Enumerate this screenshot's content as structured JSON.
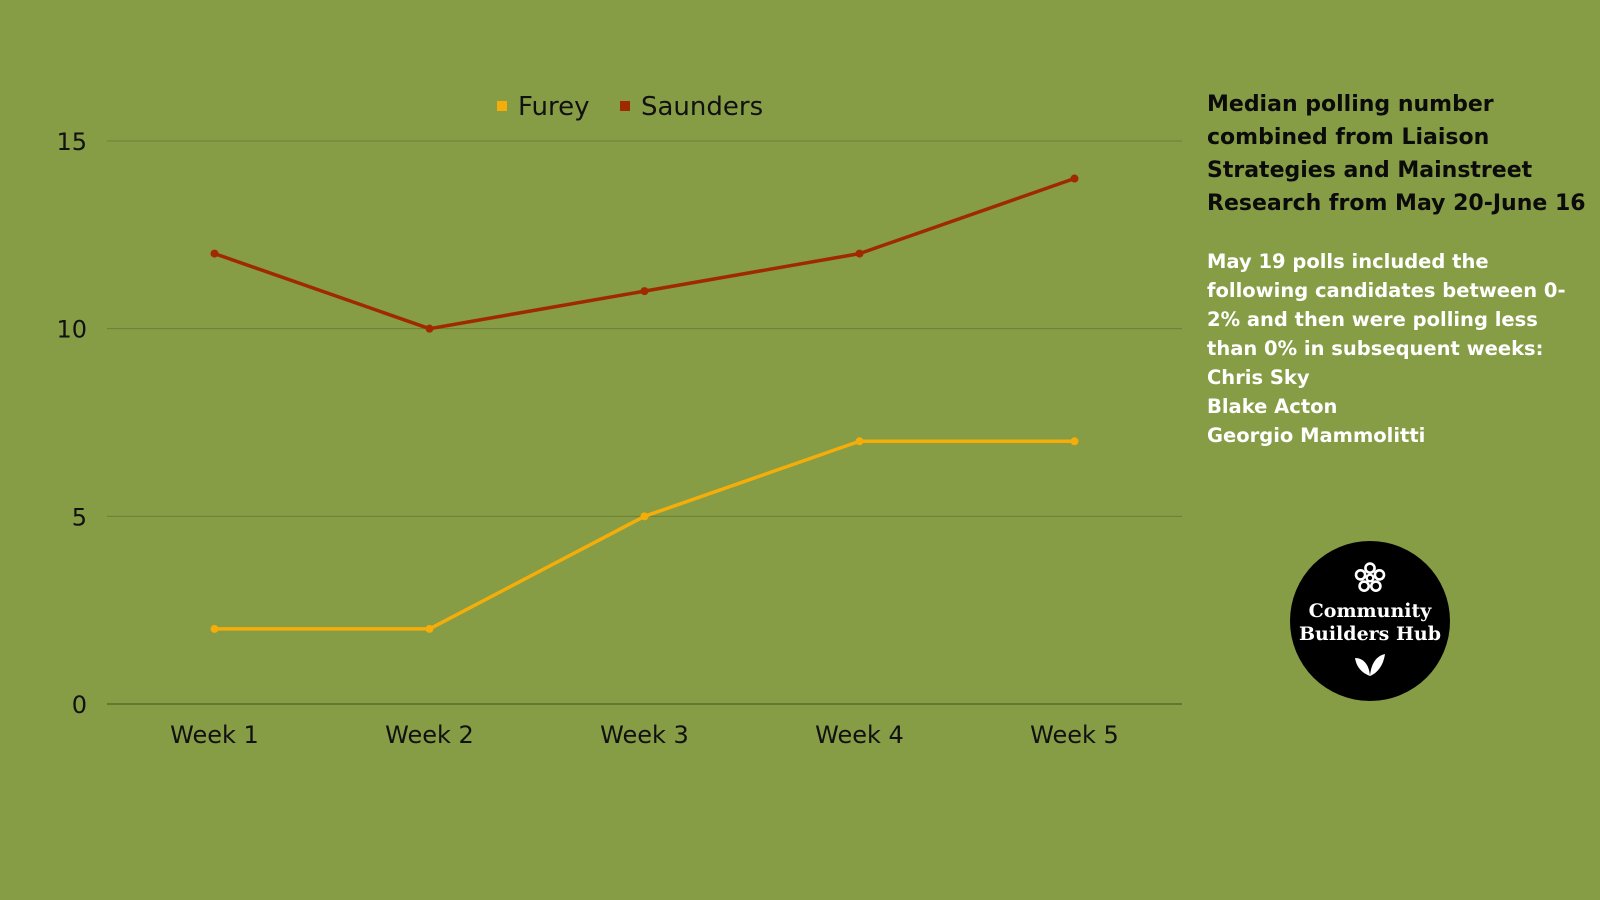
{
  "chart_data": {
    "type": "line",
    "categories": [
      "Week 1",
      "Week 2",
      "Week 3",
      "Week 4",
      "Week 5"
    ],
    "series": [
      {
        "name": "Furey",
        "color": "#f5ad0a",
        "values": [
          2,
          2,
          5,
          7,
          7
        ]
      },
      {
        "name": "Saunders",
        "color": "#a02a00",
        "values": [
          12,
          10,
          11,
          12,
          14
        ]
      }
    ],
    "yticks": [
      "0",
      "5",
      "10",
      "15"
    ],
    "ylim": [
      0,
      15
    ],
    "grid": true,
    "legend": "top-center",
    "title": "",
    "xlabel": "",
    "ylabel": ""
  },
  "sidebar": {
    "heading": "Median polling number combined from Liaison Strategies and Mainstreet Research from May 20-June 16",
    "note_lines": [
      "May 19 polls included the following candidates between 0-2% and then were polling less than 0% in subsequent weeks:",
      "Chris Sky",
      "Blake Acton",
      "Georgio Mammolitti"
    ]
  },
  "logo": {
    "line1": "Community",
    "line2": "Builders Hub",
    "icons": [
      "flower-icon",
      "leaf-icon"
    ]
  }
}
